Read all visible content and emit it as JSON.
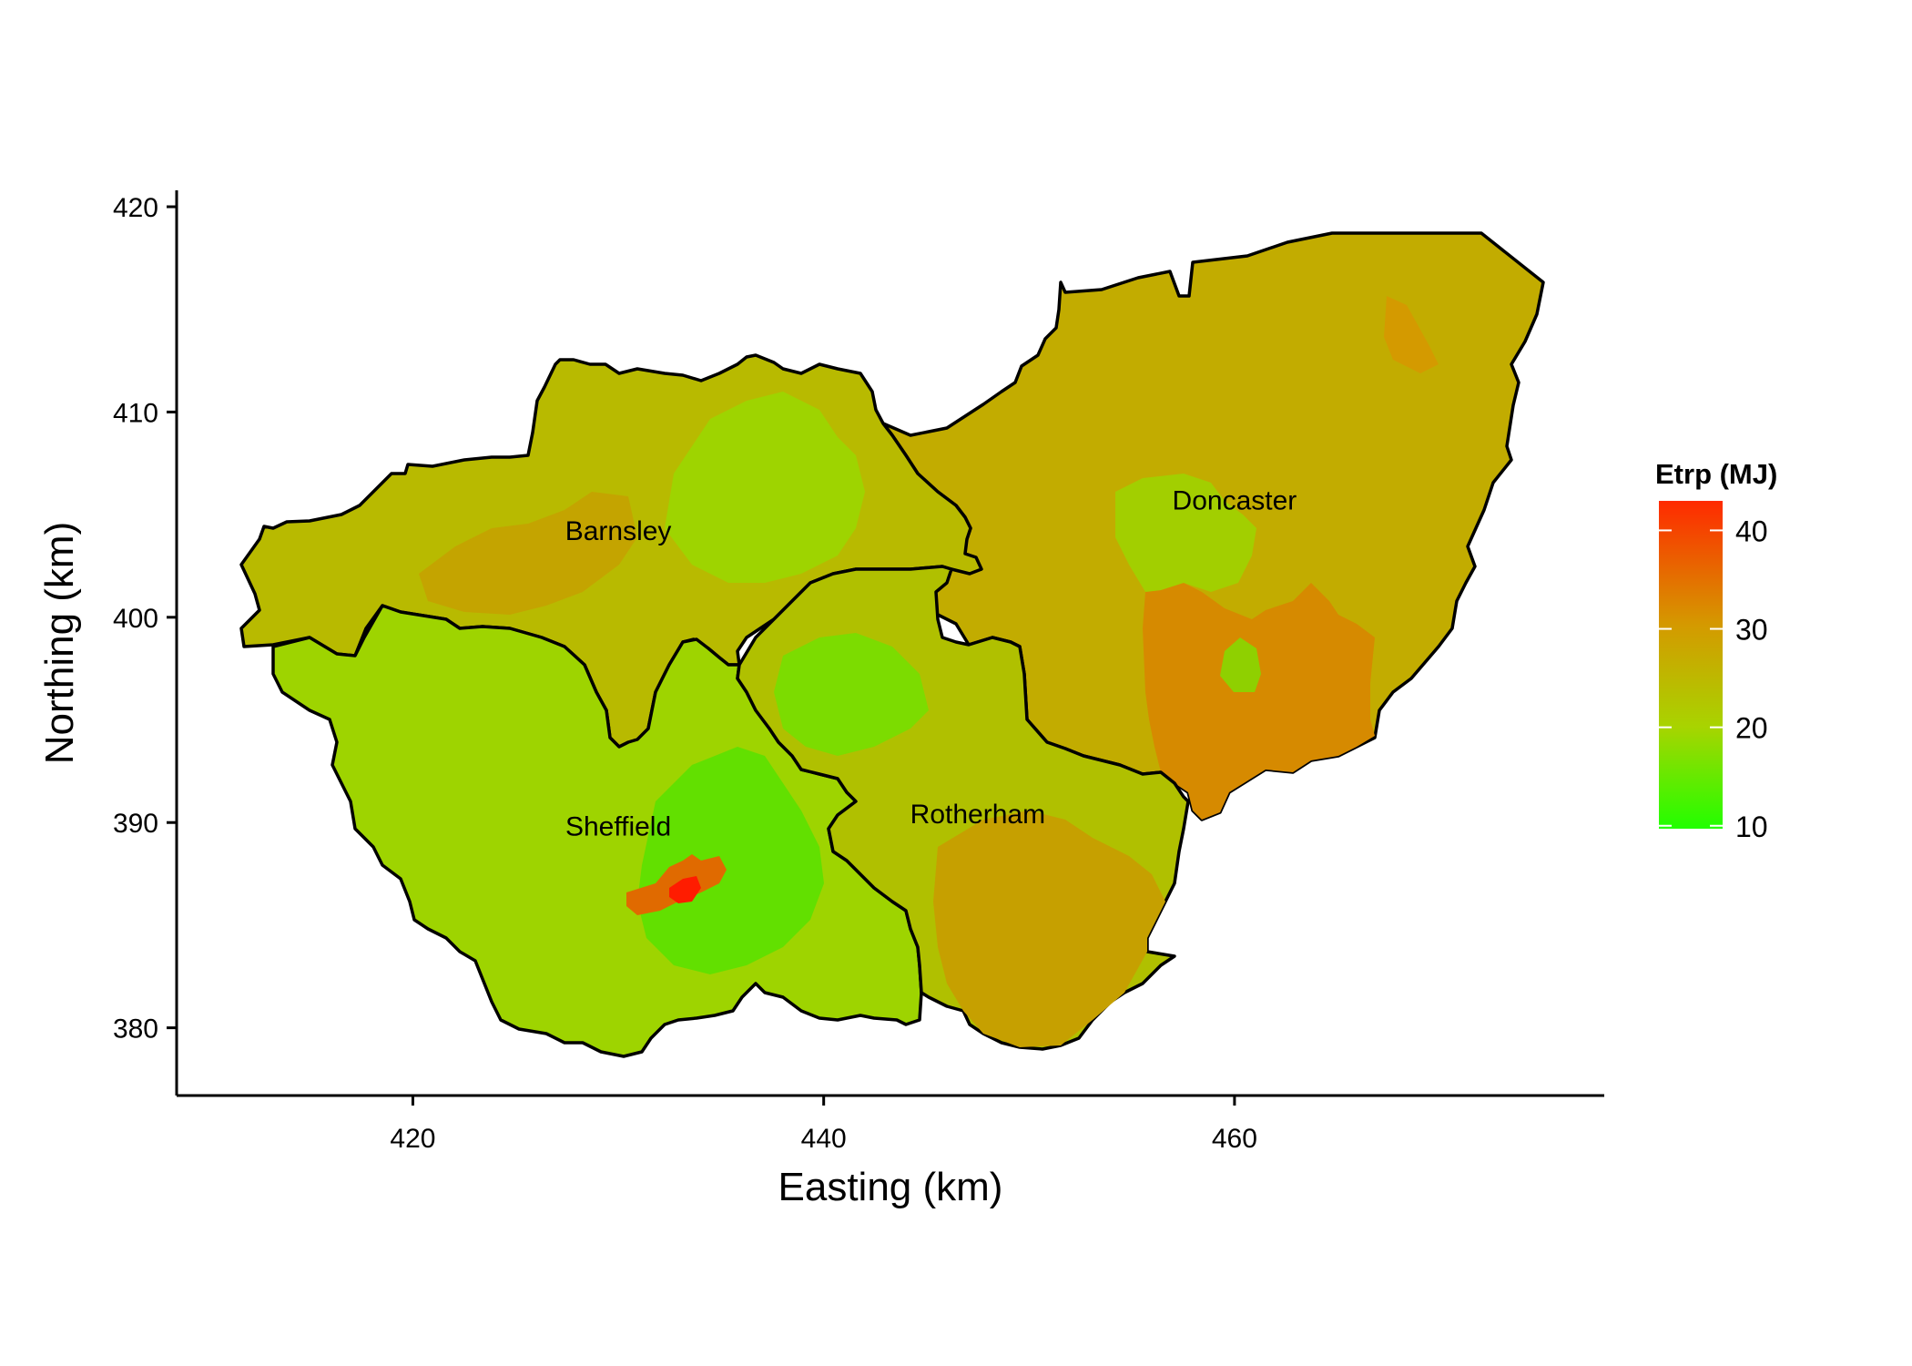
{
  "chart_data": {
    "type": "choropleth",
    "xlabel": "Easting (km)",
    "ylabel": "Northing (km)",
    "xlim": [
      408.5,
      478
    ],
    "ylim": [
      376.7,
      420.8
    ],
    "x_ticks": [
      420,
      440,
      460
    ],
    "y_ticks": [
      380,
      390,
      400,
      410,
      420
    ],
    "legend": {
      "title": "Etrp (MJ)",
      "ticks": [
        10,
        20,
        30,
        40
      ],
      "range": [
        9.7,
        43
      ],
      "colors": [
        "#22ff00",
        "#a8d400",
        "#d49a00",
        "#ff2a00"
      ],
      "placement": "right"
    },
    "regions": [
      {
        "name": "Barnsley",
        "label_x": 430,
        "label_y": 404.2,
        "mean_value": 22
      },
      {
        "name": "Doncaster",
        "label_x": 460,
        "label_y": 405.7,
        "mean_value": 26
      },
      {
        "name": "Rotherham",
        "label_x": 447.5,
        "label_y": 390.4,
        "mean_value": 24
      },
      {
        "name": "Sheffield",
        "label_x": 430,
        "label_y": 389.8,
        "mean_value": 18
      }
    ]
  }
}
